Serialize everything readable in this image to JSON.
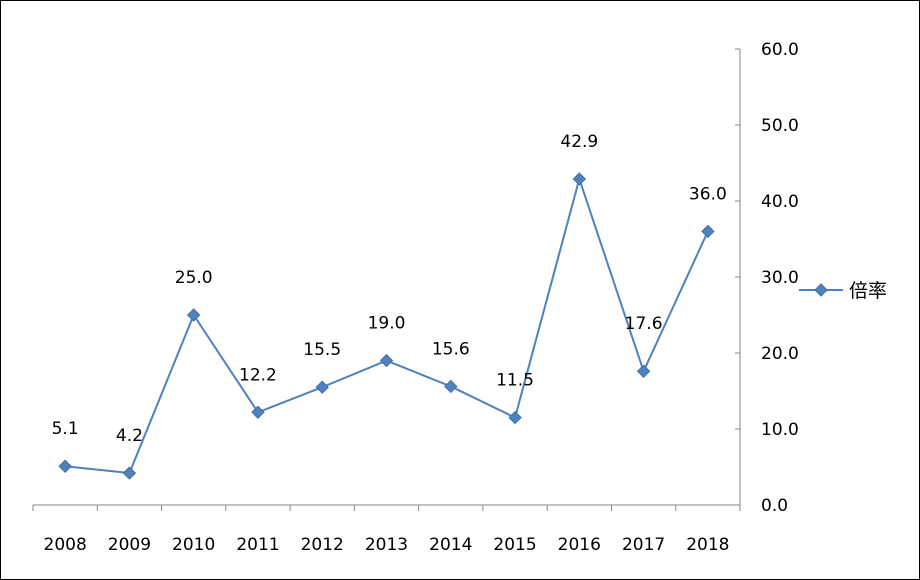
{
  "chart_data": {
    "type": "line",
    "categories": [
      "2008",
      "2009",
      "2010",
      "2011",
      "2012",
      "2013",
      "2014",
      "2015",
      "2016",
      "2017",
      "2018"
    ],
    "series": [
      {
        "name": "倍率",
        "values": [
          5.1,
          4.2,
          25.0,
          12.2,
          15.5,
          19.0,
          15.6,
          11.5,
          42.9,
          17.6,
          36.0
        ],
        "data_labels": [
          "5.1",
          "4.2",
          "25.0",
          "12.2",
          "15.5",
          "19.0",
          "15.6",
          "11.5",
          "42.9",
          "17.6",
          "36.0"
        ],
        "color": "#4f81bd"
      }
    ],
    "y_axis": {
      "position": "right",
      "range": [
        0,
        60
      ],
      "ticks": [
        0,
        10,
        20,
        30,
        40,
        50,
        60
      ],
      "tick_labels": [
        "0.0",
        "10.0",
        "20.0",
        "30.0",
        "40.0",
        "50.0",
        "60.0"
      ]
    },
    "grid": false,
    "legend": {
      "position": "right"
    }
  }
}
